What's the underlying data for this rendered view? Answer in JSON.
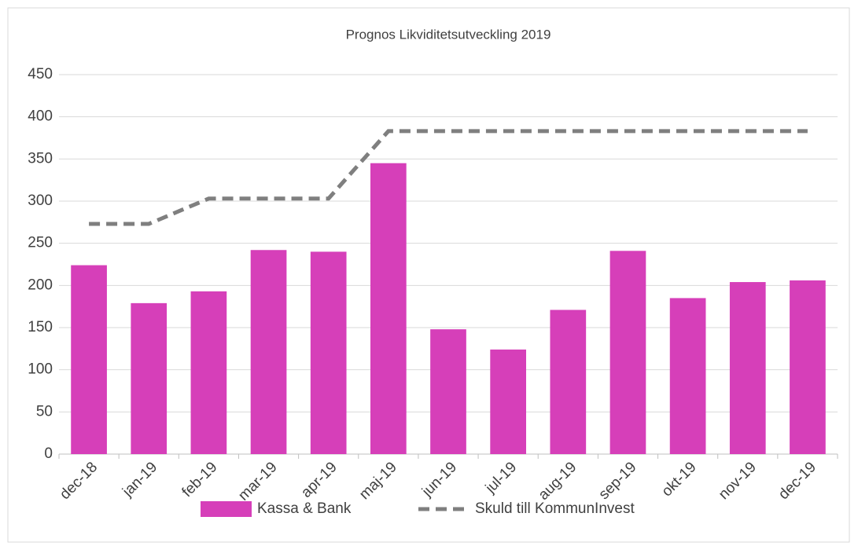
{
  "chart_data": {
    "type": "bar",
    "title": "Prognos Likviditetsutveckling 2019",
    "categories": [
      "dec-18",
      "jan-19",
      "feb-19",
      "mar-19",
      "apr-19",
      "maj-19",
      "jun-19",
      "jul-19",
      "aug-19",
      "sep-19",
      "okt-19",
      "nov-19",
      "dec-19"
    ],
    "series": [
      {
        "name": "Kassa & Bank",
        "type": "bar",
        "color": "#d63fb9",
        "values": [
          224,
          179,
          193,
          242,
          240,
          345,
          148,
          124,
          171,
          241,
          185,
          204,
          206
        ]
      },
      {
        "name": "Skuld till KommunInvest",
        "type": "line",
        "dashed": true,
        "color": "#7f7f7f",
        "values": [
          273,
          273,
          303,
          303,
          303,
          383,
          383,
          383,
          383,
          383,
          383,
          383,
          383
        ]
      }
    ],
    "ylim": [
      0,
      450
    ],
    "yticks": [
      0,
      50,
      100,
      150,
      200,
      250,
      300,
      350,
      400,
      450
    ],
    "grid": true,
    "legend": "bottom"
  }
}
